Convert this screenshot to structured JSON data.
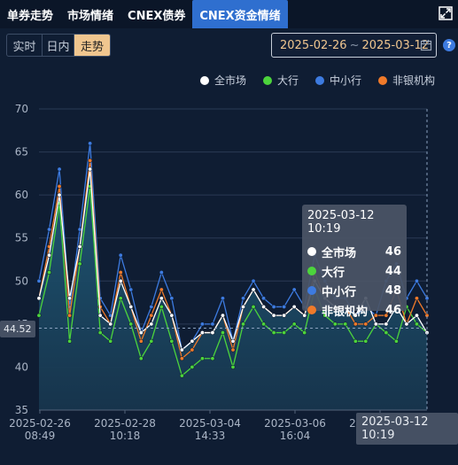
{
  "tabs": [
    {
      "label": "单券走势",
      "active": false
    },
    {
      "label": "市场情绪",
      "active": false
    },
    {
      "label": "CNEX债券",
      "active": false
    },
    {
      "label": "CNEX资金情绪",
      "active": true
    }
  ],
  "mode_buttons": [
    {
      "label": "实时",
      "active": false
    },
    {
      "label": "日内",
      "active": false
    },
    {
      "label": "走势",
      "active": true
    }
  ],
  "date_range": {
    "start": "2025-02-26",
    "separator": "~",
    "end": "2025-03-12"
  },
  "icons": {
    "expand": "expand-icon",
    "calendar": "calendar-icon",
    "help": "help-icon"
  },
  "help_glyph": "?",
  "crosshair": {
    "y_value": "44.52",
    "x_label": "2025-03-12 10:19"
  },
  "tooltip": {
    "title": "2025-03-12 10:19",
    "rows": [
      {
        "name": "全市场",
        "value": "46",
        "color": "#ffffff"
      },
      {
        "name": "大行",
        "value": "44",
        "color": "#4cd43c"
      },
      {
        "name": "中小行",
        "value": "48",
        "color": "#3d7be0"
      },
      {
        "name": "非银机构",
        "value": "46",
        "color": "#f07a2a"
      }
    ]
  },
  "chart_data": {
    "type": "line",
    "ylim": [
      35,
      70
    ],
    "y_ticks": [
      "70",
      "65",
      "60",
      "55",
      "50",
      "45",
      "40",
      "35"
    ],
    "x_tick_labels": [
      {
        "date": "2025-02-26",
        "time": "08:49"
      },
      {
        "date": "2025-02-28",
        "time": "10:18"
      },
      {
        "date": "2025-03-04",
        "time": "14:33"
      },
      {
        "date": "2025-03-06",
        "time": "16:04"
      },
      {
        "date": "2025-03-10",
        "time": "08:48"
      }
    ],
    "grid": true,
    "legend_position": "top-right",
    "series": [
      {
        "name": "全市场",
        "color": "#ffffff",
        "values": [
          48,
          53,
          60,
          48,
          54,
          63,
          46,
          45,
          50,
          47,
          44,
          45,
          48,
          46,
          42,
          43,
          44,
          44,
          46,
          43,
          47,
          49,
          47,
          46,
          46,
          47,
          46,
          50,
          48,
          47,
          47,
          46,
          48,
          45,
          45,
          47,
          45,
          46,
          44
        ]
      },
      {
        "name": "大行",
        "color": "#4cd43c",
        "values": [
          46,
          51,
          59,
          43,
          52,
          61,
          44,
          43,
          48,
          45,
          41,
          43,
          47,
          43,
          39,
          40,
          41,
          41,
          44,
          40,
          45,
          47,
          45,
          44,
          44,
          45,
          44,
          49,
          46,
          45,
          45,
          43,
          43,
          45,
          44,
          43,
          47,
          45,
          44
        ]
      },
      {
        "name": "中小行",
        "color": "#3d7be0",
        "values": [
          50,
          56,
          63,
          47,
          56,
          66,
          48,
          46,
          53,
          49,
          44,
          47,
          51,
          48,
          42,
          43,
          45,
          45,
          48,
          43,
          48,
          50,
          48,
          47,
          47,
          49,
          47,
          53,
          50,
          48,
          48,
          46,
          47,
          46,
          50,
          52,
          48,
          50,
          48
        ]
      },
      {
        "name": "非银机构",
        "color": "#f07a2a",
        "values": [
          48,
          54,
          61,
          46,
          54,
          64,
          47,
          45,
          51,
          47,
          43,
          46,
          49,
          46,
          41,
          42,
          44,
          44,
          46,
          42,
          47,
          49,
          47,
          46,
          46,
          47,
          46,
          51,
          48,
          47,
          47,
          45,
          45,
          46,
          46,
          49,
          45,
          48,
          46
        ]
      }
    ]
  }
}
